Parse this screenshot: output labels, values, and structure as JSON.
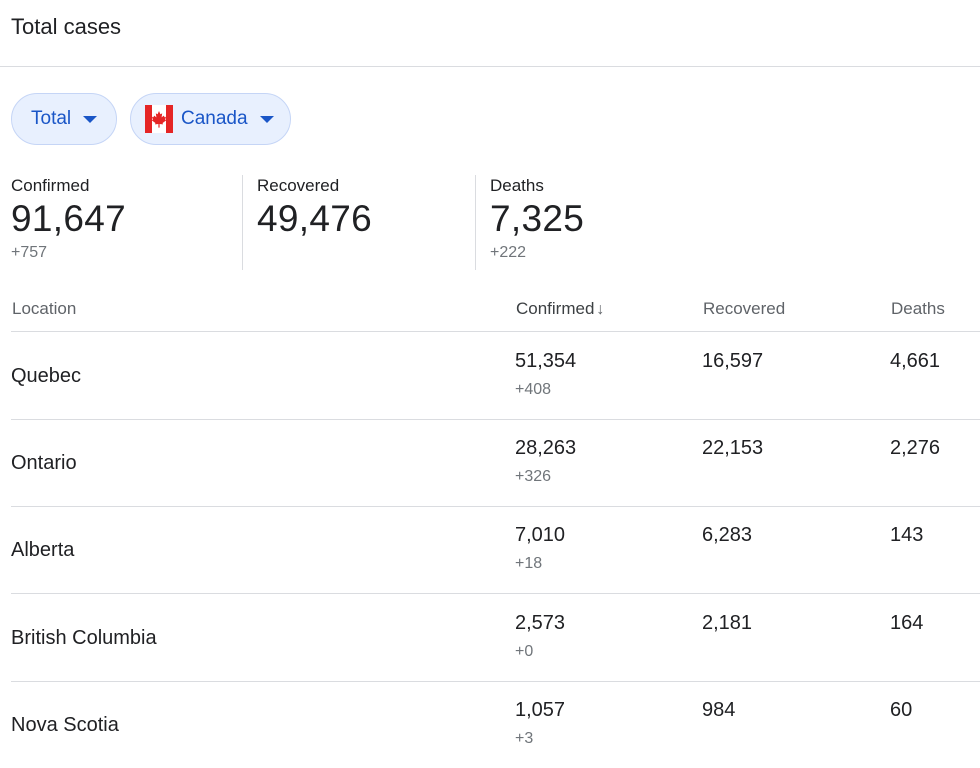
{
  "header": {
    "title": "Total cases"
  },
  "filters": {
    "metric_label": "Total",
    "region_label": "Canada"
  },
  "summary": {
    "confirmed": {
      "label": "Confirmed",
      "value": "91,647",
      "delta": "+757"
    },
    "recovered": {
      "label": "Recovered",
      "value": "49,476"
    },
    "deaths": {
      "label": "Deaths",
      "value": "7,325",
      "delta": "+222"
    }
  },
  "table": {
    "columns": [
      "Location",
      "Confirmed",
      "Recovered",
      "Deaths"
    ],
    "rows": [
      {
        "location": "Quebec",
        "confirmed": "51,354",
        "delta": "+408",
        "recovered": "16,597",
        "deaths": "4,661"
      },
      {
        "location": "Ontario",
        "confirmed": "28,263",
        "delta": "+326",
        "recovered": "22,153",
        "deaths": "2,276"
      },
      {
        "location": "Alberta",
        "confirmed": "7,010",
        "delta": "+18",
        "recovered": "6,283",
        "deaths": "143"
      },
      {
        "location": "British Columbia",
        "confirmed": "2,573",
        "delta": "+0",
        "recovered": "2,181",
        "deaths": "164"
      },
      {
        "location": "Nova Scotia",
        "confirmed": "1,057",
        "delta": "+3",
        "recovered": "984",
        "deaths": "60"
      }
    ]
  },
  "colors": {
    "chip_background": "#e8f0fe",
    "chip_text": "#1a56c7",
    "flag_red": "#e52525",
    "divider": "#dadce0",
    "muted_text": "#70757a"
  },
  "icons": {
    "dropdown": "caret-down-icon",
    "flag": "canada-flag-icon",
    "sort": "arrow-down-icon"
  }
}
